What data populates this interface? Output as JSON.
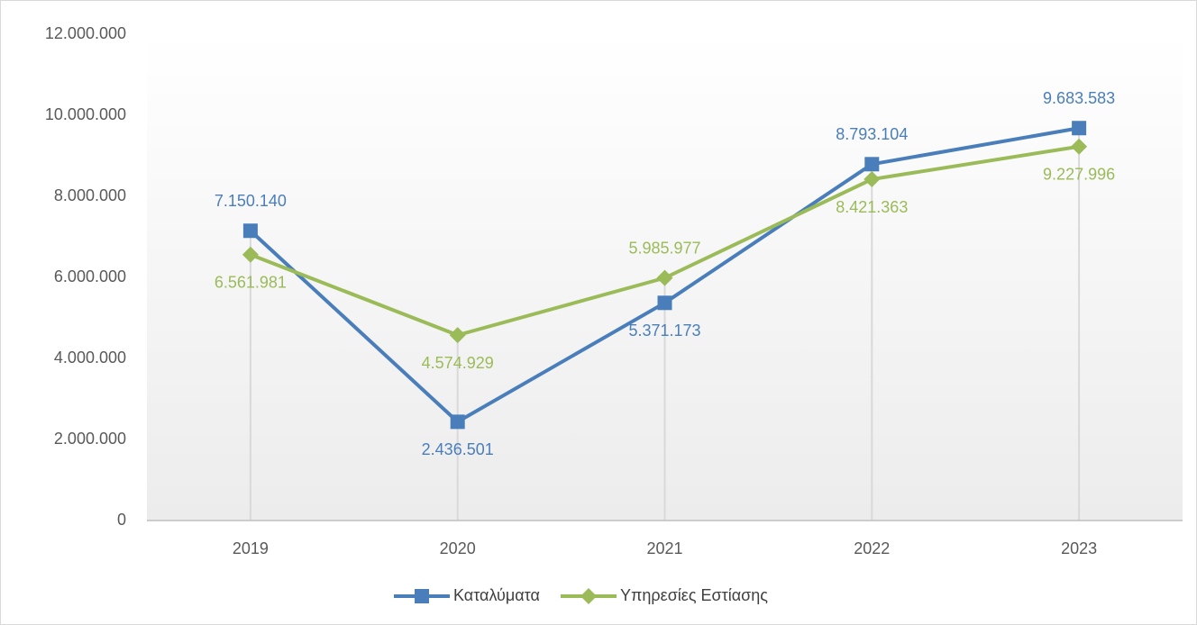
{
  "chart_data": {
    "type": "line",
    "categories": [
      "2019",
      "2020",
      "2021",
      "2022",
      "2023"
    ],
    "series": [
      {
        "name": "Καταλύματα",
        "color": "#4a7ebb",
        "marker": "square",
        "values": [
          7150140,
          2436501,
          5371173,
          8793104,
          9683583
        ],
        "value_labels": [
          "7.150.140",
          "2.436.501",
          "5.371.173",
          "8.793.104",
          "9.683.583"
        ]
      },
      {
        "name": "Υπηρεσίες Εστίασης",
        "color": "#9bbb59",
        "marker": "diamond",
        "values": [
          6561981,
          4574929,
          5985977,
          8421363,
          9227996
        ],
        "value_labels": [
          "6.561.981",
          "4.574.929",
          "5.985.977",
          "8.421.363",
          "9.227.996"
        ]
      }
    ],
    "ylim": [
      0,
      12000000
    ],
    "yticks": [
      0,
      {
        "value": 2000000,
        "label": "2.000.000"
      },
      {
        "value": 4000000,
        "label": "4.000.000"
      },
      {
        "value": 6000000,
        "label": "6.000.000"
      },
      {
        "value": 8000000,
        "label": "8.000.000"
      },
      {
        "value": 10000000,
        "label": "10.000.000"
      },
      {
        "value": 12000000,
        "label": "12.000.000"
      }
    ],
    "legend": "bottom"
  }
}
